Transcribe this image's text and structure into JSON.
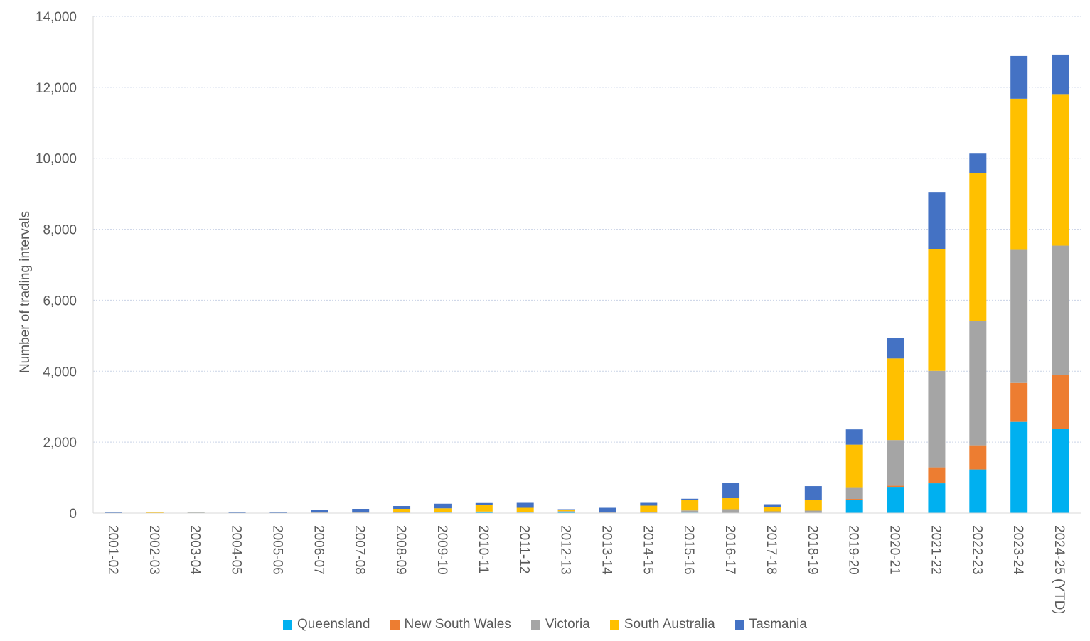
{
  "chart_data": {
    "type": "bar",
    "stacked": true,
    "ylabel": "Number of trading intervals",
    "xlabel": "",
    "ylim": [
      0,
      14000
    ],
    "y_ticks": [
      0,
      2000,
      4000,
      6000,
      8000,
      10000,
      12000,
      14000
    ],
    "y_tick_labels": [
      "0",
      "2,000",
      "4,000",
      "6,000",
      "8,000",
      "10,000",
      "12,000",
      "14,000"
    ],
    "grid": true,
    "legend_position": "bottom",
    "categories": [
      "2001-02",
      "2002-03",
      "2003-04",
      "2004-05",
      "2005-06",
      "2006-07",
      "2007-08",
      "2008-09",
      "2009-10",
      "2010-11",
      "2011-12",
      "2012-13",
      "2013-14",
      "2014-15",
      "2015-16",
      "2016-17",
      "2017-18",
      "2018-19",
      "2019-20",
      "2020-21",
      "2021-22",
      "2022-23",
      "2023-24",
      "2024-25 (YTD)"
    ],
    "series": [
      {
        "name": "Queensland",
        "color": "#00B0F0",
        "values": [
          5,
          0,
          0,
          5,
          5,
          5,
          5,
          10,
          15,
          30,
          15,
          40,
          10,
          10,
          15,
          10,
          10,
          10,
          380,
          740,
          840,
          1230,
          2570,
          2380
        ]
      },
      {
        "name": "New South Wales",
        "color": "#ED7D31",
        "values": [
          0,
          0,
          0,
          0,
          0,
          0,
          0,
          0,
          0,
          0,
          0,
          0,
          0,
          0,
          0,
          0,
          0,
          0,
          20,
          30,
          450,
          680,
          1100,
          1510
        ]
      },
      {
        "name": "Victoria",
        "color": "#A5A5A5",
        "values": [
          5,
          5,
          5,
          5,
          5,
          15,
          15,
          20,
          20,
          15,
          15,
          15,
          15,
          30,
          60,
          100,
          40,
          60,
          330,
          1290,
          2720,
          3500,
          3750,
          3650
        ]
      },
      {
        "name": "South Australia",
        "color": "#FFC000",
        "values": [
          0,
          15,
          10,
          0,
          0,
          0,
          0,
          90,
          100,
          190,
          120,
          40,
          15,
          170,
          290,
          310,
          130,
          300,
          1200,
          2300,
          3440,
          4180,
          4260,
          4270
        ]
      },
      {
        "name": "Tasmania",
        "color": "#4472C4",
        "values": [
          10,
          0,
          5,
          10,
          10,
          70,
          100,
          80,
          130,
          50,
          140,
          15,
          110,
          80,
          40,
          430,
          70,
          390,
          430,
          570,
          1600,
          540,
          1200,
          1110
        ]
      }
    ]
  }
}
